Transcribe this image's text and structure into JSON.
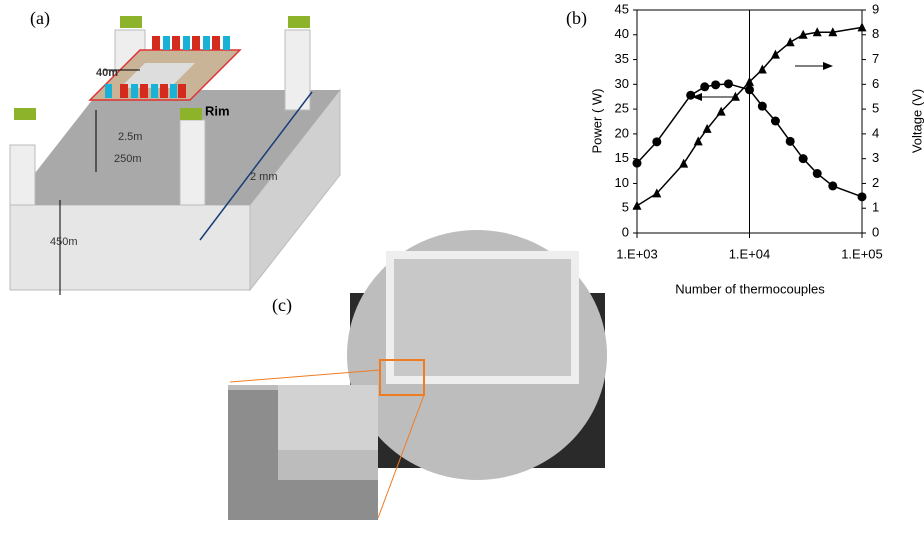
{
  "panels": {
    "a": "(a)",
    "b": "(b)",
    "c": "(c)"
  },
  "diagram": {
    "rim": "Rim",
    "width_top": "40m",
    "gap": "2.5m",
    "depth": "250m",
    "height": "450m",
    "length": "2 mm"
  },
  "chart_data": {
    "type": "line",
    "x_label": "Number of thermocouples",
    "y_label": "Power ( W)",
    "y2_label": "Voltage (V)",
    "log_x": true,
    "xlim": [
      1000,
      100000
    ],
    "xticks": [
      {
        "value": 1000,
        "label": "1.E+03"
      },
      {
        "value": 10000,
        "label": "1.E+04"
      },
      {
        "value": 100000,
        "label": "1.E+05"
      }
    ],
    "ylim": [
      0,
      45
    ],
    "yticks": [
      0,
      5,
      10,
      15,
      20,
      25,
      30,
      35,
      40,
      45
    ],
    "y2lim": [
      0,
      9
    ],
    "y2ticks": [
      0,
      1,
      2,
      3,
      4,
      5,
      6,
      7,
      8,
      9
    ],
    "grid": true,
    "series": [
      {
        "color": "#000000",
        "marker": "circle",
        "x": [
          1000,
          1500,
          3000,
          4000,
          5000,
          6500,
          10000,
          13000,
          17000,
          23000,
          30000,
          40000,
          55000,
          100000
        ],
        "values": [
          14.1,
          18.4,
          27.8,
          29.5,
          29.9,
          30.1,
          28.9,
          25.6,
          22.6,
          18.5,
          15,
          12,
          9.5,
          7.3
        ]
      },
      {
        "color": "#000000",
        "marker": "triangle",
        "axis": "y2",
        "x": [
          1000,
          1500,
          2600,
          3500,
          4200,
          5600,
          7500,
          10000,
          13000,
          17000,
          23000,
          30000,
          40000,
          55000,
          100000
        ],
        "values": [
          1.1,
          1.6,
          2.8,
          3.7,
          4.2,
          4.9,
          5.5,
          6.1,
          6.6,
          7.2,
          7.7,
          8.0,
          8.1,
          8.1,
          8.3
        ]
      }
    ]
  }
}
